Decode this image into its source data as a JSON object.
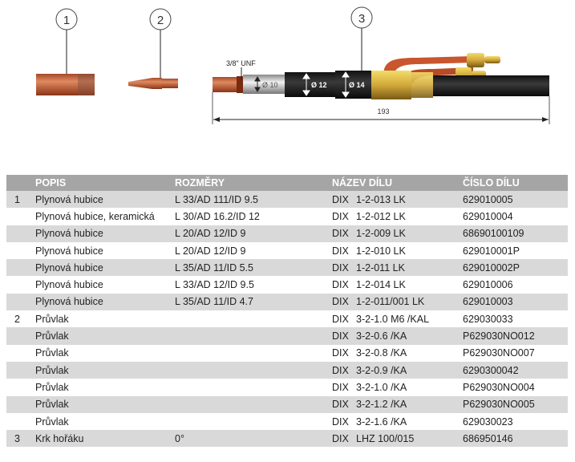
{
  "callouts": [
    "1",
    "2",
    "3"
  ],
  "drawing": {
    "thread_label": "3/8\" UNF",
    "diameters": [
      "Ø 10",
      "Ø 12",
      "Ø 14"
    ],
    "length": "193"
  },
  "table": {
    "headers": {
      "popis": "POPIS",
      "rozmery": "ROZMĚRY",
      "nazev": "NÁZEV DÍLU",
      "cislo": "ČÍSLO DÍLU"
    },
    "rows": [
      {
        "pos": "1",
        "popis": "Plynová hubice",
        "rozmery": "L 33/AD 111/ID 9.5",
        "prefix": "DIX",
        "nazev": "1-2-013 LK",
        "cislo": "629010005"
      },
      {
        "pos": "",
        "popis": "Plynová hubice, keramická",
        "rozmery": "L 30/AD 16.2/ID 12",
        "prefix": "DIX",
        "nazev": "1-2-012 LK",
        "cislo": "629010004"
      },
      {
        "pos": "",
        "popis": "Plynová hubice",
        "rozmery": "L 20/AD 12/ID 9",
        "prefix": "DIX",
        "nazev": "1-2-009 LK",
        "cislo": "68690100109"
      },
      {
        "pos": "",
        "popis": "Plynová hubice",
        "rozmery": "L 20/AD 12/ID 9",
        "prefix": "DIX",
        "nazev": "1-2-010 LK",
        "cislo": "629010001P"
      },
      {
        "pos": "",
        "popis": "Plynová hubice",
        "rozmery": "L 35/AD 11/ID 5.5",
        "prefix": "DIX",
        "nazev": "1-2-011 LK",
        "cislo": "629010002P"
      },
      {
        "pos": "",
        "popis": "Plynová hubice",
        "rozmery": "L 33/AD 12/ID 9.5",
        "prefix": "DIX",
        "nazev": "1-2-014 LK",
        "cislo": "629010006"
      },
      {
        "pos": "",
        "popis": "Plynová hubice",
        "rozmery": "L 35/AD 11/ID 4.7",
        "prefix": "DIX",
        "nazev": "1-2-011/001 LK",
        "cislo": "629010003"
      },
      {
        "pos": "2",
        "popis": "Průvlak",
        "rozmery": "",
        "prefix": "DIX",
        "nazev": "3-2-1.0 M6 /KAL",
        "cislo": "629030033"
      },
      {
        "pos": "",
        "popis": "Průvlak",
        "rozmery": "",
        "prefix": "DIX",
        "nazev": "3-2-0.6 /KA",
        "cislo": "P629030NO012"
      },
      {
        "pos": "",
        "popis": "Průvlak",
        "rozmery": "",
        "prefix": "DIX",
        "nazev": "3-2-0.8 /KA",
        "cislo": "P629030NO007"
      },
      {
        "pos": "",
        "popis": "Průvlak",
        "rozmery": "",
        "prefix": "DIX",
        "nazev": "3-2-0.9 /KA",
        "cislo": "6290300042"
      },
      {
        "pos": "",
        "popis": "Průvlak",
        "rozmery": "",
        "prefix": "DIX",
        "nazev": "3-2-1.0 /KA",
        "cislo": "P629030NO004"
      },
      {
        "pos": "",
        "popis": "Průvlak",
        "rozmery": "",
        "prefix": "DIX",
        "nazev": "3-2-1.2 /KA",
        "cislo": "P629030NO005"
      },
      {
        "pos": "",
        "popis": "Průvlak",
        "rozmery": "",
        "prefix": "DIX",
        "nazev": "3-2-1.6 /KA",
        "cislo": "629030023"
      },
      {
        "pos": "3",
        "popis": "Krk hořáku",
        "rozmery": "0°",
        "prefix": "DIX",
        "nazev": "LHZ 100/015",
        "cislo": "686950146"
      }
    ]
  },
  "colors": {
    "header_bg": "#a5a5a5",
    "row_alt": "#d9d9d9",
    "copper": "#c8643c"
  }
}
